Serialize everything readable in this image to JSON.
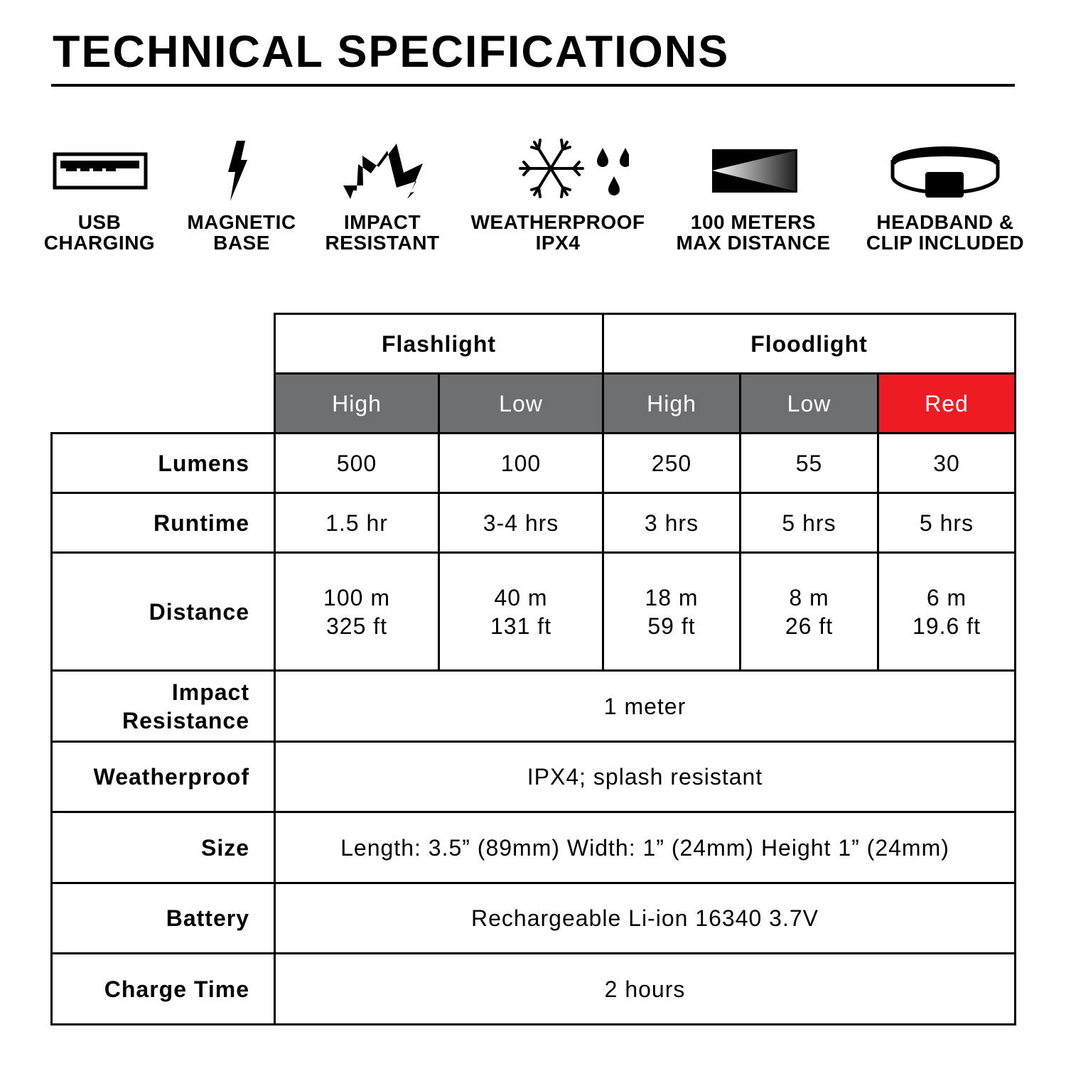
{
  "title": "TECHNICAL SPECIFICATIONS",
  "features": [
    {
      "icon": "usb-port-icon",
      "line1": "USB",
      "line2": "CHARGING"
    },
    {
      "icon": "lightning-bolt-icon",
      "line1": "MAGNETIC",
      "line2": "BASE"
    },
    {
      "icon": "impact-burst-icon",
      "line1": "IMPACT",
      "line2": "RESISTANT"
    },
    {
      "icon": "snowflake-raindrops-icon",
      "line1": "WEATHERPROOF",
      "line2": "IPX4"
    },
    {
      "icon": "light-beam-icon",
      "line1": "100 METERS",
      "line2": "MAX DISTANCE"
    },
    {
      "icon": "headband-icon",
      "line1": "HEADBAND &",
      "line2": "CLIP INCLUDED"
    }
  ],
  "table": {
    "groups": [
      "Flashlight",
      "Floodlight"
    ],
    "modes": [
      "High",
      "Low",
      "High",
      "Low",
      "Red"
    ],
    "colors": {
      "mode_header": "#6d6e71",
      "red_mode": "#ed1c24"
    },
    "rows": [
      {
        "label": "Lumens",
        "values": [
          "500",
          "100",
          "250",
          "55",
          "30"
        ]
      },
      {
        "label": "Runtime",
        "values": [
          "1.5 hr",
          "3-4 hrs",
          "3 hrs",
          "5 hrs",
          "5 hrs"
        ]
      },
      {
        "label": "Distance",
        "values": [
          [
            "100 m",
            "325 ft"
          ],
          [
            "40 m",
            "131 ft"
          ],
          [
            "18 m",
            "59 ft"
          ],
          [
            "8 m",
            "26 ft"
          ],
          [
            "6 m",
            "19.6 ft"
          ]
        ]
      },
      {
        "label": [
          "Impact",
          "Resistance"
        ],
        "value": "1 meter"
      },
      {
        "label": "Weatherproof",
        "value": "IPX4; splash resistant"
      },
      {
        "label": "Size",
        "value": "Length: 3.5” (89mm) Width: 1” (24mm) Height 1” (24mm)"
      },
      {
        "label": "Battery",
        "value": "Rechargeable Li-ion 16340 3.7V"
      },
      {
        "label": "Charge Time",
        "value": "2 hours"
      }
    ]
  }
}
